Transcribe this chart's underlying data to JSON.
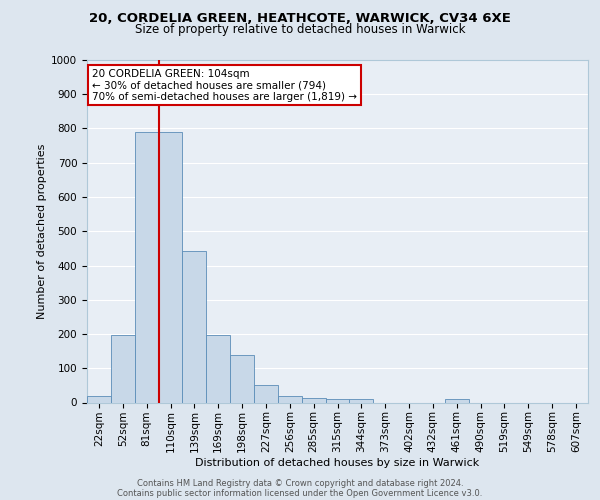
{
  "title1": "20, CORDELIA GREEN, HEATHCOTE, WARWICK, CV34 6XE",
  "title2": "Size of property relative to detached houses in Warwick",
  "xlabel": "Distribution of detached houses by size in Warwick",
  "ylabel": "Number of detached properties",
  "bar_labels": [
    "22sqm",
    "52sqm",
    "81sqm",
    "110sqm",
    "139sqm",
    "169sqm",
    "198sqm",
    "227sqm",
    "256sqm",
    "285sqm",
    "315sqm",
    "344sqm",
    "373sqm",
    "402sqm",
    "432sqm",
    "461sqm",
    "490sqm",
    "519sqm",
    "549sqm",
    "578sqm",
    "607sqm"
  ],
  "bar_values": [
    20,
    197,
    790,
    790,
    443,
    197,
    140,
    50,
    18,
    12,
    10,
    10,
    0,
    0,
    0,
    10,
    0,
    0,
    0,
    0,
    0
  ],
  "bar_color": "#c8d8e8",
  "bar_edge_color": "#5b8db8",
  "ylim": [
    0,
    1000
  ],
  "yticks": [
    0,
    100,
    200,
    300,
    400,
    500,
    600,
    700,
    800,
    900,
    1000
  ],
  "red_line_index": 3,
  "red_line_color": "#cc0000",
  "annotation_line1": "20 CORDELIA GREEN: 104sqm",
  "annotation_line2": "← 30% of detached houses are smaller (794)",
  "annotation_line3": "70% of semi-detached houses are larger (1,819) →",
  "annotation_box_color": "#ffffff",
  "annotation_box_edge_color": "#cc0000",
  "bg_color": "#dde6ef",
  "plot_bg_color": "#e8eef5",
  "grid_color": "#ffffff",
  "footer_line1": "Contains HM Land Registry data © Crown copyright and database right 2024.",
  "footer_line2": "Contains public sector information licensed under the Open Government Licence v3.0.",
  "title1_fontsize": 9.5,
  "title2_fontsize": 8.5,
  "ylabel_fontsize": 8,
  "xlabel_fontsize": 8,
  "tick_fontsize": 7.5,
  "footer_fontsize": 6
}
